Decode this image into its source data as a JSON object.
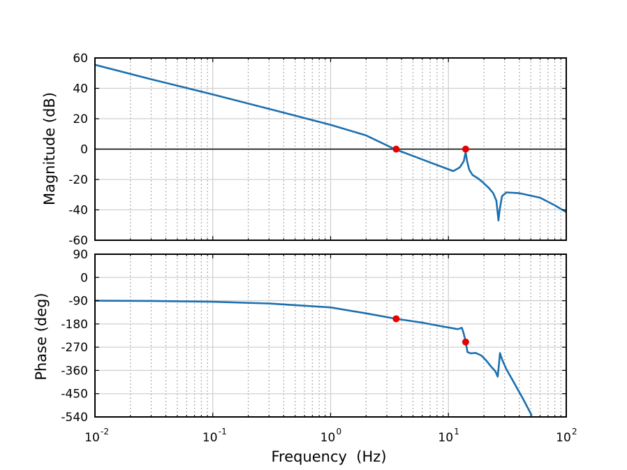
{
  "chart_data": [
    {
      "type": "line",
      "name": "magnitude",
      "title": "",
      "xlabel": "",
      "ylabel": "Magnitude (dB)",
      "xscale": "log",
      "xlim": [
        0.01,
        100
      ],
      "ylim": [
        -60,
        60
      ],
      "yticks": [
        -60,
        -40,
        -20,
        0,
        20,
        40,
        60
      ],
      "ytick_labels": [
        "-60",
        "-40",
        "-20",
        "0",
        "20",
        "40",
        "60"
      ],
      "grid": true,
      "reference_line": {
        "y": 0,
        "color": "#000000"
      },
      "series": [
        {
          "name": "Magnitude",
          "color": "#1a6faf",
          "x": [
            0.01,
            0.03,
            0.1,
            0.3,
            1,
            2,
            3.5,
            5,
            8,
            11,
            12.5,
            13.5,
            14.0,
            14.4,
            15,
            16,
            18,
            20,
            22,
            24,
            25.5,
            26.2,
            26.6,
            27.2,
            28.5,
            31,
            40,
            60,
            80,
            100
          ],
          "y": [
            55.5,
            46,
            36,
            26.5,
            16,
            9,
            0,
            -4.5,
            -10.5,
            -14.5,
            -12,
            -8,
            -2,
            -8,
            -13.5,
            -17,
            -19.5,
            -22.5,
            -25.5,
            -29,
            -34,
            -42,
            -47,
            -40,
            -31,
            -28.5,
            -29,
            -32,
            -37,
            -41.5
          ]
        }
      ],
      "markers": {
        "color": "#e60000",
        "points": [
          {
            "x": 3.6,
            "y": 0
          },
          {
            "x": 14.0,
            "y": 0
          }
        ]
      }
    },
    {
      "type": "line",
      "name": "phase",
      "title": "",
      "xlabel": "Frequency  (Hz)",
      "ylabel": "Phase (deg)",
      "xscale": "log",
      "xlim": [
        0.01,
        100
      ],
      "xticks": [
        0.01,
        0.1,
        1,
        10,
        100
      ],
      "xtick_labels": [
        {
          "base": "10",
          "exp": "-2"
        },
        {
          "base": "10",
          "exp": "-1"
        },
        {
          "base": "10",
          "exp": "0"
        },
        {
          "base": "10",
          "exp": "1"
        },
        {
          "base": "10",
          "exp": "2"
        }
      ],
      "ylim": [
        -540,
        90
      ],
      "yticks": [
        -540,
        -450,
        -360,
        -270,
        -180,
        -90,
        0,
        90
      ],
      "ytick_labels": [
        "-540",
        "-450",
        "-360",
        "-270",
        "-180",
        "-90",
        "0",
        "90"
      ],
      "grid": true,
      "series": [
        {
          "name": "Phase",
          "color": "#1a6faf",
          "x": [
            0.01,
            0.03,
            0.1,
            0.3,
            1,
            2,
            3.6,
            6,
            9,
            12,
            13.0,
            13.5,
            14.0,
            14.5,
            15.5,
            17,
            19,
            21,
            23,
            25,
            26.2,
            26.8,
            27.4,
            28.5,
            31,
            36,
            43,
            51
          ],
          "y": [
            -90,
            -91,
            -94,
            -101,
            -116,
            -139,
            -160,
            -175,
            -190,
            -200,
            -195,
            -218,
            -248,
            -289,
            -294,
            -292,
            -302,
            -322,
            -345,
            -363,
            -384,
            -340,
            -293,
            -317,
            -355,
            -407,
            -470,
            -535
          ]
        }
      ],
      "markers": {
        "color": "#e60000",
        "points": [
          {
            "x": 3.6,
            "y": -160
          },
          {
            "x": 14.0,
            "y": -250
          }
        ]
      }
    }
  ]
}
